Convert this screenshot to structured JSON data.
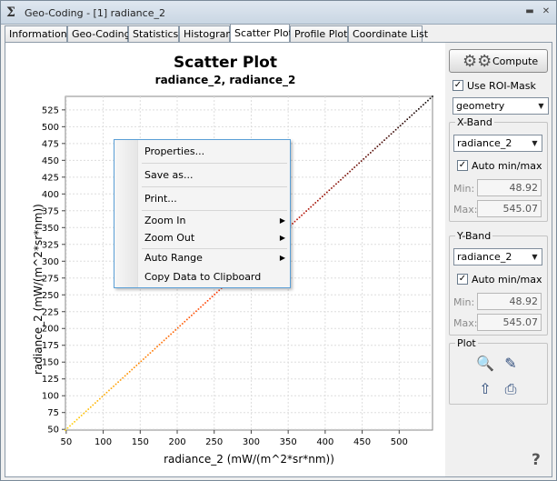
{
  "window": {
    "title": "Geo-Coding - [1] radiance_2",
    "app_icon": "sigma-icon",
    "controls": [
      "minimize-icon",
      "close-icon"
    ]
  },
  "tabs": [
    {
      "label": "Information",
      "active": false
    },
    {
      "label": "Geo-Coding",
      "active": false
    },
    {
      "label": "Statistics",
      "active": false
    },
    {
      "label": "Histogram",
      "active": false
    },
    {
      "label": "Scatter Plot",
      "active": true
    },
    {
      "label": "Profile Plot",
      "active": false
    },
    {
      "label": "Coordinate List",
      "active": false
    }
  ],
  "chart_data": {
    "type": "scatter",
    "title": "Scatter Plot",
    "subtitle": "radiance_2, radiance_2",
    "xlabel": "radiance_2 (mW/(m^2*sr*nm))",
    "ylabel": "radiance_2 (mW/(m^2*sr*nm))",
    "xlim": [
      48.92,
      545.07
    ],
    "ylim": [
      48.92,
      545.07
    ],
    "xticks": [
      50,
      100,
      150,
      200,
      250,
      300,
      350,
      400,
      450,
      500
    ],
    "yticks": [
      50,
      75,
      100,
      125,
      150,
      175,
      200,
      225,
      250,
      275,
      300,
      325,
      350,
      375,
      400,
      425,
      450,
      475,
      500,
      525
    ],
    "grid": true,
    "series": [
      {
        "points_from": [
          48.92,
          48.92
        ],
        "points_to": [
          545.07,
          545.07
        ],
        "color_low": "#ffd200",
        "color_high": "#000000"
      }
    ]
  },
  "context_menu": {
    "items": [
      {
        "label": "Properties...",
        "submenu": false
      },
      {
        "label": "Save as...",
        "submenu": false
      },
      {
        "label": "Print...",
        "submenu": false
      },
      {
        "label": "Zoom In",
        "submenu": true
      },
      {
        "label": "Zoom Out",
        "submenu": true
      },
      {
        "label": "Auto Range",
        "submenu": true
      },
      {
        "label": "Copy Data to Clipboard",
        "submenu": false
      }
    ]
  },
  "side": {
    "compute_label": "Compute",
    "use_roi_label": "Use ROI-Mask",
    "use_roi_checked": true,
    "roi_mask_value": "geometry",
    "xband": {
      "title": "X-Band",
      "band": "radiance_2",
      "auto_label": "Auto min/max",
      "auto_checked": true,
      "min_label": "Min:",
      "min_value": "48.92",
      "max_label": "Max:",
      "max_value": "545.07"
    },
    "yband": {
      "title": "Y-Band",
      "band": "radiance_2",
      "auto_label": "Auto min/max",
      "auto_checked": true,
      "min_label": "Min:",
      "min_value": "48.92",
      "max_label": "Max:",
      "max_value": "545.07"
    },
    "plot_group_title": "Plot",
    "plot_tools": [
      "zoom-icon",
      "edit-icon",
      "export-icon",
      "print-icon"
    ],
    "help": "?"
  }
}
